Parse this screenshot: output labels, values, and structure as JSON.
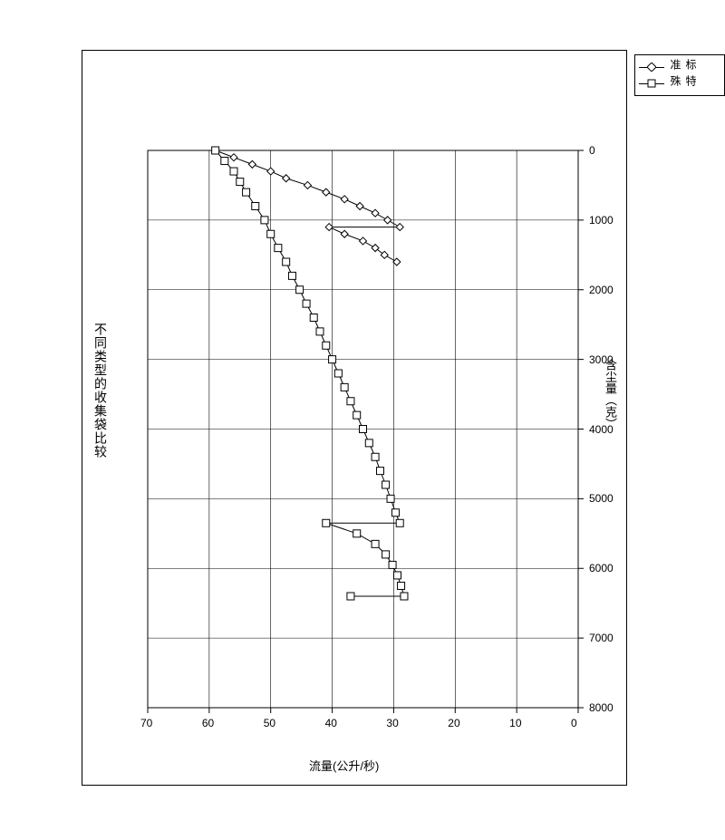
{
  "chart": {
    "type": "line",
    "title": "不同类型的收集袋比较",
    "xlabel": "含尘量（克）",
    "ylabel": "流量(公升/秒)",
    "xlim": [
      0,
      8000
    ],
    "ylim": [
      0,
      70
    ],
    "xticks": [
      0,
      1000,
      2000,
      3000,
      4000,
      5000,
      6000,
      7000,
      8000
    ],
    "yticks": [
      0,
      10,
      20,
      30,
      40,
      50,
      60,
      70
    ],
    "title_fontsize": 14,
    "label_fontsize": 13,
    "tick_fontsize": 12,
    "background_color": "#ffffff",
    "grid_color": "#000000",
    "line_color": "#000000",
    "marker_stroke": "#000000",
    "marker_fill": "#ffffff",
    "marker_size": 8,
    "line_width": 1,
    "rotation_deg": 90,
    "legend": {
      "items": [
        {
          "label": "标准",
          "marker": "diamond"
        },
        {
          "label": "特殊",
          "marker": "square"
        }
      ],
      "position": "outside-right-top"
    },
    "series": [
      {
        "name": "标准",
        "marker": "diamond",
        "points": [
          [
            0,
            59
          ],
          [
            100,
            56
          ],
          [
            200,
            53
          ],
          [
            300,
            50
          ],
          [
            400,
            47.5
          ],
          [
            500,
            44
          ],
          [
            600,
            41
          ],
          [
            700,
            38
          ],
          [
            800,
            35.5
          ],
          [
            900,
            33
          ],
          [
            1000,
            31
          ],
          [
            1100,
            29
          ],
          [
            1100,
            40.5
          ],
          [
            1200,
            38
          ],
          [
            1300,
            35
          ],
          [
            1400,
            33
          ],
          [
            1500,
            31.5
          ],
          [
            1600,
            29.5
          ]
        ]
      },
      {
        "name": "特殊",
        "marker": "square",
        "points": [
          [
            0,
            59
          ],
          [
            150,
            57.5
          ],
          [
            300,
            56
          ],
          [
            450,
            55
          ],
          [
            600,
            54
          ],
          [
            800,
            52.5
          ],
          [
            1000,
            51
          ],
          [
            1200,
            50
          ],
          [
            1400,
            48.8
          ],
          [
            1600,
            47.5
          ],
          [
            1800,
            46.5
          ],
          [
            2000,
            45.3
          ],
          [
            2200,
            44.2
          ],
          [
            2400,
            43
          ],
          [
            2600,
            42
          ],
          [
            2800,
            41
          ],
          [
            3000,
            40
          ],
          [
            3200,
            39
          ],
          [
            3400,
            38
          ],
          [
            3600,
            37
          ],
          [
            3800,
            36
          ],
          [
            4000,
            35
          ],
          [
            4200,
            34
          ],
          [
            4400,
            33
          ],
          [
            4600,
            32.2
          ],
          [
            4800,
            31.3
          ],
          [
            5000,
            30.5
          ],
          [
            5200,
            29.7
          ],
          [
            5350,
            29
          ],
          [
            5350,
            41
          ],
          [
            5500,
            36
          ],
          [
            5650,
            33
          ],
          [
            5800,
            31.3
          ],
          [
            5950,
            30.2
          ],
          [
            6100,
            29.4
          ],
          [
            6250,
            28.8
          ],
          [
            6400,
            28.3
          ],
          [
            6400,
            37
          ]
        ]
      }
    ]
  }
}
